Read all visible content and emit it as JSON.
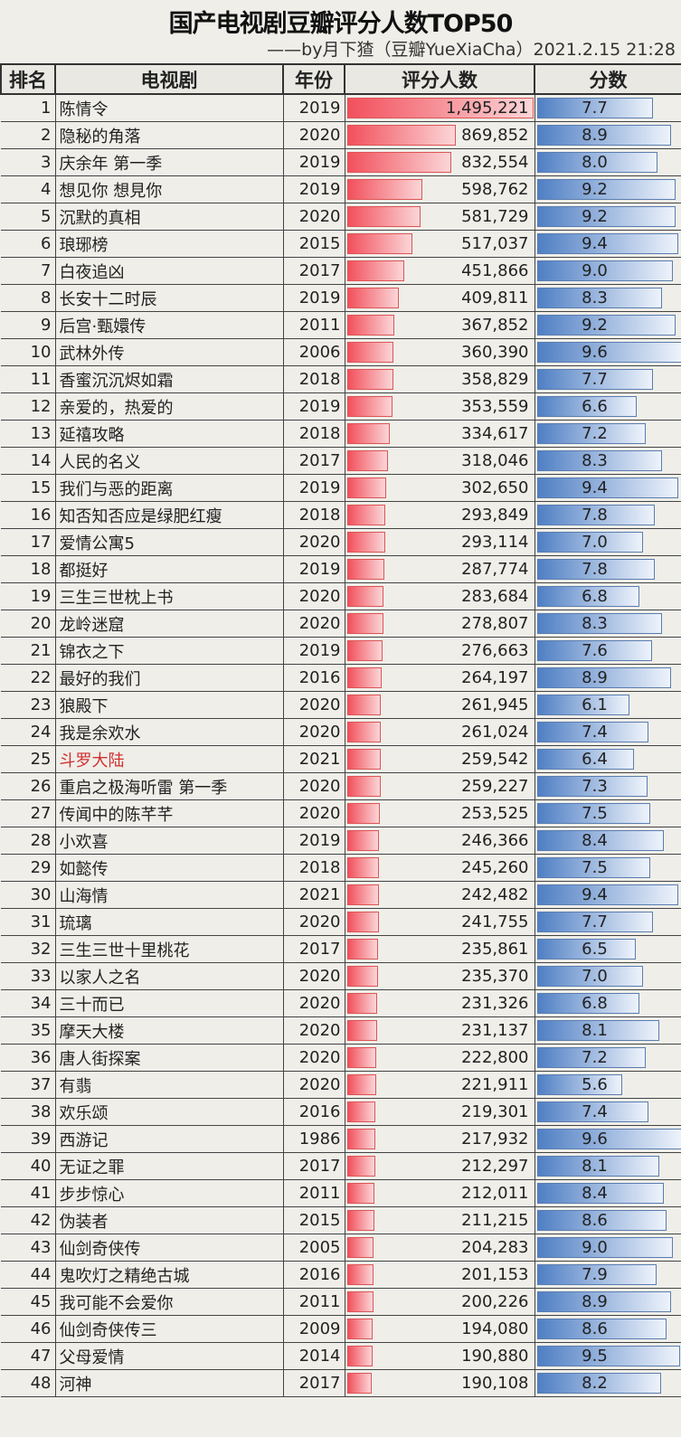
{
  "title": "国产电视剧豆瓣评分人数TOP50",
  "subtitle": "——by月下猹（豆瓣YueXiaCha）2021.2.15 21:28",
  "colors": {
    "count_bar": "#f2505c",
    "score_bar": "#4f7fc4",
    "highlight_text": "#d03030"
  },
  "chart_data": {
    "type": "table",
    "columns": [
      "排名",
      "电视剧",
      "年份",
      "评分人数",
      "分数"
    ],
    "rows": [
      [
        1,
        "陈情令",
        2019,
        "1,495,221",
        7.7
      ],
      [
        2,
        "隐秘的角落",
        2020,
        "869,852",
        8.9
      ],
      [
        3,
        "庆余年 第一季",
        2019,
        "832,554",
        8.0
      ],
      [
        4,
        "想见你 想見你",
        2019,
        "598,762",
        9.2
      ],
      [
        5,
        "沉默的真相",
        2020,
        "581,729",
        9.2
      ],
      [
        6,
        "琅琊榜",
        2015,
        "517,037",
        9.4
      ],
      [
        7,
        "白夜追凶",
        2017,
        "451,866",
        9.0
      ],
      [
        8,
        "长安十二时辰",
        2019,
        "409,811",
        8.3
      ],
      [
        9,
        "后宫·甄嬛传",
        2011,
        "367,852",
        9.2
      ],
      [
        10,
        "武林外传",
        2006,
        "360,390",
        9.6
      ],
      [
        11,
        "香蜜沉沉烬如霜",
        2018,
        "358,829",
        7.7
      ],
      [
        12,
        "亲爱的，热爱的",
        2019,
        "353,559",
        6.6
      ],
      [
        13,
        "延禧攻略",
        2018,
        "334,617",
        7.2
      ],
      [
        14,
        "人民的名义",
        2017,
        "318,046",
        8.3
      ],
      [
        15,
        "我们与恶的距离",
        2019,
        "302,650",
        9.4
      ],
      [
        16,
        "知否知否应是绿肥红瘦",
        2018,
        "293,849",
        7.8
      ],
      [
        17,
        "爱情公寓5",
        2020,
        "293,114",
        7.0
      ],
      [
        18,
        "都挺好",
        2019,
        "287,774",
        7.8
      ],
      [
        19,
        "三生三世枕上书",
        2020,
        "283,684",
        6.8
      ],
      [
        20,
        "龙岭迷窟",
        2020,
        "278,807",
        8.3
      ],
      [
        21,
        "锦衣之下",
        2019,
        "276,663",
        7.6
      ],
      [
        22,
        "最好的我们",
        2016,
        "264,197",
        8.9
      ],
      [
        23,
        "狼殿下",
        2020,
        "261,945",
        6.1
      ],
      [
        24,
        "我是余欢水",
        2020,
        "261,024",
        7.4
      ],
      [
        25,
        "斗罗大陆",
        2021,
        "259,542",
        6.4
      ],
      [
        26,
        "重启之极海听雷 第一季",
        2020,
        "259,227",
        7.3
      ],
      [
        27,
        "传闻中的陈芊芊",
        2020,
        "253,525",
        7.5
      ],
      [
        28,
        "小欢喜",
        2019,
        "246,366",
        8.4
      ],
      [
        29,
        "如懿传",
        2018,
        "245,260",
        7.5
      ],
      [
        30,
        "山海情",
        2021,
        "242,482",
        9.4
      ],
      [
        31,
        "琉璃",
        2020,
        "241,755",
        7.7
      ],
      [
        32,
        "三生三世十里桃花",
        2017,
        "235,861",
        6.5
      ],
      [
        33,
        "以家人之名",
        2020,
        "235,370",
        7.0
      ],
      [
        34,
        "三十而已",
        2020,
        "231,326",
        6.8
      ],
      [
        35,
        "摩天大楼",
        2020,
        "231,137",
        8.1
      ],
      [
        36,
        "唐人街探案",
        2020,
        "222,800",
        7.2
      ],
      [
        37,
        "有翡",
        2020,
        "221,911",
        5.6
      ],
      [
        38,
        "欢乐颂",
        2016,
        "219,301",
        7.4
      ],
      [
        39,
        "西游记",
        1986,
        "217,932",
        9.6
      ],
      [
        40,
        "无证之罪",
        2017,
        "212,297",
        8.1
      ],
      [
        41,
        "步步惊心",
        2011,
        "212,011",
        8.4
      ],
      [
        42,
        "伪装者",
        2015,
        "211,215",
        8.6
      ],
      [
        43,
        "仙剑奇侠传",
        2005,
        "204,283",
        9.0
      ],
      [
        44,
        "鬼吹灯之精绝古城",
        2016,
        "201,153",
        7.9
      ],
      [
        45,
        "我可能不会爱你",
        2011,
        "200,226",
        8.9
      ],
      [
        46,
        "仙剑奇侠传三",
        2009,
        "194,080",
        8.6
      ],
      [
        47,
        "父母爱情",
        2014,
        "190,880",
        9.5
      ],
      [
        48,
        "河神",
        2017,
        "190,108",
        8.2
      ]
    ],
    "highlighted_rank": 25
  }
}
